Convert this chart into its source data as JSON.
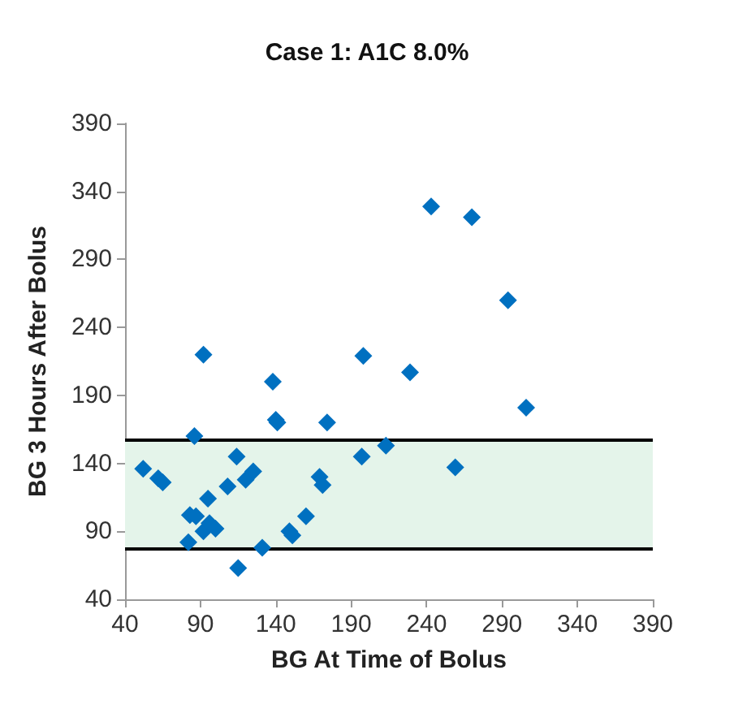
{
  "chart_data": {
    "type": "scatter",
    "title": "Case 1: A1C 8.0%",
    "xlabel": "BG At Time of Bolus",
    "ylabel": "BG 3 Hours After Bolus",
    "x": [
      52,
      62,
      65,
      92,
      86,
      83,
      87,
      82,
      95,
      92,
      96,
      100,
      115,
      114,
      108,
      120,
      125,
      131,
      138,
      140,
      141,
      149,
      151,
      160,
      169,
      171,
      174,
      197,
      198,
      213,
      229,
      243,
      270,
      259,
      294,
      306
    ],
    "series": [
      {
        "color": "#0070c0",
        "values": [
          136,
          129,
          126,
          220,
          160,
          102,
          101,
          82,
          114,
          90,
          96,
          92,
          63,
          145,
          123,
          128,
          134,
          78,
          200,
          172,
          170,
          90,
          87,
          101,
          130,
          124,
          170,
          145,
          219,
          153,
          207,
          329,
          321,
          137,
          260,
          181
        ]
      }
    ],
    "xlim": [
      40,
      390
    ],
    "xticks": [
      40,
      90,
      140,
      190,
      240,
      290,
      340,
      390
    ],
    "ylim": [
      40,
      390
    ],
    "yticks": [
      40,
      90,
      140,
      190,
      240,
      290,
      340,
      390
    ],
    "bands": [
      {
        "axis": "y",
        "from": 77,
        "to": 157,
        "color": "#e4f4ea"
      }
    ],
    "ref_lines": [
      {
        "axis": "y",
        "value": 157,
        "color": "#000000"
      },
      {
        "axis": "y",
        "value": 77,
        "color": "#000000"
      }
    ],
    "grid": false,
    "marker": "diamond"
  }
}
